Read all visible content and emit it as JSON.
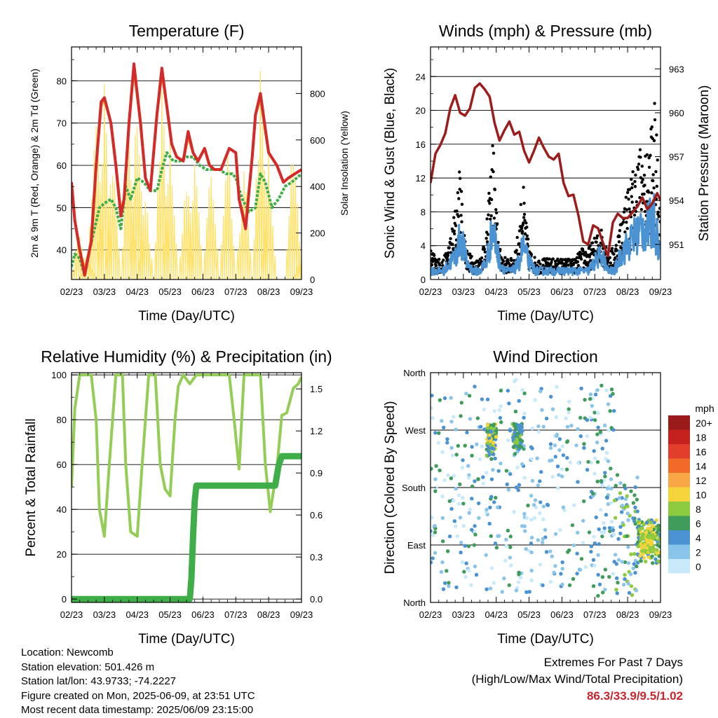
{
  "chart_data": [
    {
      "type": "line",
      "title": "Temperature (F)",
      "xlabel": "Time (Day/UTC)",
      "ylabel": "2m & 9m T (Red, Orange) & 2m Td (Green)",
      "y2label": "Solar Insolation (Yellow)",
      "xticks": [
        "02/23",
        "03/23",
        "04/23",
        "05/23",
        "06/23",
        "07/23",
        "08/23",
        "09/23"
      ],
      "xlim": [
        0,
        7
      ],
      "ylim": [
        33,
        88
      ],
      "yticks": [
        40,
        50,
        60,
        70,
        80
      ],
      "y2lim": [
        0,
        1000
      ],
      "y2ticks": [
        0,
        200,
        400,
        600,
        800
      ],
      "grid": true,
      "series": [
        {
          "color": "#d42a2a",
          "axis": "left",
          "x": [
            0,
            0.1,
            0.25,
            0.4,
            0.6,
            0.75,
            0.9,
            1.0,
            1.2,
            1.35,
            1.5,
            1.6,
            1.75,
            1.9,
            2.1,
            2.25,
            2.4,
            2.6,
            2.75,
            2.9,
            3.05,
            3.2,
            3.4,
            3.55,
            3.7,
            3.85,
            4.05,
            4.2,
            4.35,
            4.55,
            4.7,
            4.8,
            5.0,
            5.1,
            5.3,
            5.5,
            5.6,
            5.75,
            6.0,
            6.25,
            6.45,
            6.6,
            6.8,
            7.0
          ],
          "y": [
            56,
            47,
            40,
            34,
            42,
            60,
            75,
            76,
            70,
            60,
            48,
            52,
            70,
            84,
            70,
            57,
            54,
            72,
            83,
            74,
            65,
            62,
            61,
            68,
            63,
            61,
            64,
            60,
            59,
            59,
            62,
            64,
            63,
            52,
            45,
            62,
            72,
            77,
            63,
            60,
            56,
            57,
            58,
            59
          ]
        },
        {
          "color": "#f28c28",
          "axis": "left",
          "x": [
            0,
            0.1,
            0.25,
            0.4,
            0.6,
            0.75,
            0.9,
            1.0,
            1.2,
            1.35,
            1.5,
            1.6,
            1.75,
            1.9,
            2.1,
            2.25,
            2.4,
            2.6,
            2.75,
            2.9,
            3.05,
            3.2,
            3.4,
            3.55,
            3.7,
            3.85,
            4.05,
            4.2,
            4.35,
            4.55,
            4.7,
            4.8,
            5.0,
            5.1,
            5.3,
            5.5,
            5.6,
            5.75,
            6.0,
            6.25,
            6.45,
            6.6,
            6.8,
            7.0
          ],
          "y": [
            56,
            47,
            40,
            35,
            42,
            60,
            74,
            76,
            70,
            60,
            49,
            52,
            70,
            83,
            70,
            57,
            54,
            72,
            82,
            74,
            65,
            62,
            61,
            67,
            63,
            61,
            64,
            60,
            59,
            59,
            62,
            64,
            63,
            52,
            46,
            62,
            72,
            76,
            63,
            60,
            56,
            57,
            58,
            59
          ]
        },
        {
          "color": "#3fae49",
          "axis": "left",
          "x": [
            0,
            0.1,
            0.25,
            0.4,
            0.55,
            0.7,
            0.85,
            1.0,
            1.2,
            1.35,
            1.5,
            1.65,
            1.8,
            2.0,
            2.2,
            2.4,
            2.6,
            2.75,
            2.9,
            3.1,
            3.3,
            3.5,
            3.7,
            3.9,
            4.1,
            4.3,
            4.5,
            4.7,
            4.9,
            5.0,
            5.2,
            5.4,
            5.6,
            5.75,
            5.9,
            6.1,
            6.3,
            6.5,
            6.7,
            6.85,
            7.0
          ],
          "y": [
            36,
            39,
            38,
            34,
            40,
            45,
            50,
            51,
            52,
            50,
            45,
            55,
            52,
            57,
            56,
            54,
            54,
            59,
            63,
            61,
            61,
            62,
            62,
            60,
            59,
            59,
            59,
            58,
            58,
            57,
            52,
            49,
            50,
            58,
            56,
            50,
            52,
            55,
            56,
            57,
            58
          ]
        },
        {
          "color": "#ffe26b",
          "axis": "right",
          "spikes": true,
          "peaks": [
            [
              0.25,
              260
            ],
            [
              0.5,
              120
            ],
            [
              0.75,
              930
            ],
            [
              1.0,
              860
            ],
            [
              1.25,
              560
            ],
            [
              1.75,
              780
            ],
            [
              2.0,
              830
            ],
            [
              2.25,
              420
            ],
            [
              2.75,
              900
            ],
            [
              3.0,
              740
            ],
            [
              3.5,
              520
            ],
            [
              3.75,
              600
            ],
            [
              4.25,
              580
            ],
            [
              4.75,
              700
            ],
            [
              5.25,
              560
            ],
            [
              5.75,
              960
            ],
            [
              6.0,
              560
            ],
            [
              6.75,
              700
            ],
            [
              7.0,
              120
            ]
          ]
        }
      ]
    },
    {
      "type": "line",
      "title": "Winds (mph) & Pressure (mb)",
      "xlabel": "Time (Day/UTC)",
      "ylabel": "Sonic Wind & Gust (Blue, Black)",
      "y2label": "Station Pressure (Maroon)",
      "xticks": [
        "02/23",
        "03/23",
        "04/23",
        "05/23",
        "06/23",
        "07/23",
        "08/23",
        "09/23"
      ],
      "xlim": [
        0,
        7
      ],
      "ylim": [
        0,
        27.5
      ],
      "yticks": [
        0,
        4,
        8,
        12,
        16,
        20,
        24
      ],
      "y2lim": [
        948.6,
        964.5
      ],
      "y2ticks": [
        951,
        954,
        957,
        960,
        963
      ],
      "grid": true,
      "series": [
        {
          "color": "#9c1c1c",
          "axis": "right",
          "x": [
            0,
            0.15,
            0.3,
            0.45,
            0.6,
            0.75,
            0.9,
            1.05,
            1.2,
            1.35,
            1.5,
            1.65,
            1.8,
            1.95,
            2.1,
            2.25,
            2.4,
            2.55,
            2.7,
            2.85,
            3.0,
            3.15,
            3.3,
            3.45,
            3.6,
            3.75,
            3.9,
            4.05,
            4.2,
            4.35,
            4.5,
            4.65,
            4.8,
            4.95,
            5.1,
            5.25,
            5.4,
            5.55,
            5.7,
            5.85,
            6.0,
            6.15,
            6.3,
            6.45,
            6.6,
            6.75,
            6.9,
            7.0
          ],
          "y": [
            955.2,
            957.2,
            957.8,
            958.6,
            960.3,
            961.2,
            960.0,
            959.8,
            960.3,
            961.7,
            962.0,
            961.6,
            961.1,
            959.3,
            958.1,
            958.8,
            959.4,
            958.5,
            958.7,
            957.4,
            956.6,
            957.4,
            958.3,
            957.6,
            957.0,
            956.8,
            957.2,
            955.2,
            954.3,
            954.4,
            953.0,
            951.2,
            951.0,
            952.3,
            952.1,
            951.1,
            950.2,
            952.5,
            953.1,
            952.8,
            952.8,
            953.2,
            953.6,
            954.2,
            953.4,
            953.8,
            954.5,
            954.0
          ]
        },
        {
          "color": "#4a92d2",
          "axis": "left",
          "x": [
            0,
            0.2,
            0.4,
            0.6,
            0.8,
            0.9,
            1.0,
            1.1,
            1.3,
            1.5,
            1.7,
            1.8,
            1.9,
            2.0,
            2.1,
            2.3,
            2.5,
            2.7,
            2.8,
            2.9,
            3.0,
            3.2,
            3.4,
            3.6,
            3.8,
            4.0,
            4.2,
            4.4,
            4.6,
            4.8,
            5.0,
            5.2,
            5.4,
            5.6,
            5.8,
            6.0,
            6.2,
            6.4,
            6.6,
            6.8,
            6.95,
            7.0
          ],
          "y": [
            1,
            1,
            1,
            2,
            3,
            5,
            4,
            2,
            1,
            1,
            2,
            4,
            6,
            4,
            2,
            1,
            1,
            2,
            4,
            3,
            2,
            1,
            1,
            1,
            1,
            1,
            1,
            1,
            1,
            1,
            2,
            3,
            1,
            1,
            3,
            4,
            5,
            6,
            6,
            7,
            4,
            3
          ]
        },
        {
          "color": "#000000",
          "axis": "left",
          "dots": true,
          "x": [
            0,
            0.2,
            0.4,
            0.6,
            0.8,
            0.9,
            1.0,
            1.1,
            1.3,
            1.5,
            1.7,
            1.8,
            1.9,
            2.0,
            2.1,
            2.3,
            2.5,
            2.7,
            2.8,
            2.9,
            3.0,
            3.2,
            3.4,
            3.6,
            3.8,
            4.0,
            4.2,
            4.4,
            4.6,
            4.8,
            5.0,
            5.2,
            5.4,
            5.6,
            5.8,
            6.0,
            6.2,
            6.4,
            6.6,
            6.8,
            6.95,
            7.0
          ],
          "y": [
            3,
            2,
            2,
            4,
            8,
            11,
            6,
            3,
            2,
            2,
            5,
            9,
            14,
            7,
            3,
            2,
            2,
            5,
            10,
            6,
            3,
            2,
            2,
            2,
            2,
            2,
            2,
            2,
            3,
            3,
            4,
            5,
            3,
            3,
            6,
            9,
            11,
            13,
            12,
            18,
            10,
            7
          ]
        }
      ]
    },
    {
      "type": "line",
      "title": "Relative Humidity (%) & Precipitation (in)",
      "xlabel": "Time (Day/UTC)",
      "ylabel": "Percent & Total Rainfall",
      "xticks": [
        "02/23",
        "03/23",
        "04/23",
        "05/23",
        "06/23",
        "07/23",
        "08/23",
        "09/23"
      ],
      "xlim": [
        0,
        7
      ],
      "ylim": [
        -1.5,
        101
      ],
      "yticks": [
        0,
        20,
        40,
        60,
        80,
        100
      ],
      "y2lim": [
        -0.024,
        1.616
      ],
      "y2ticks": [
        0.0,
        0.3,
        0.6,
        0.9,
        1.2,
        1.5
      ],
      "grid": true,
      "series": [
        {
          "color": "#93cd55",
          "axis": "left",
          "x": [
            0,
            0.1,
            0.25,
            0.4,
            0.6,
            0.75,
            0.85,
            1.0,
            1.15,
            1.35,
            1.55,
            1.65,
            1.8,
            2.0,
            2.15,
            2.35,
            2.55,
            2.7,
            2.85,
            3.0,
            3.15,
            3.25,
            3.4,
            3.6,
            3.8,
            3.9,
            4.1,
            4.3,
            4.5,
            4.65,
            4.8,
            4.95,
            5.1,
            5.25,
            5.5,
            5.75,
            5.9,
            6.05,
            6.25,
            6.4,
            6.55,
            6.75,
            6.9,
            7.0
          ],
          "y": [
            50,
            85,
            100,
            100,
            100,
            80,
            40,
            28,
            60,
            100,
            100,
            60,
            30,
            28,
            60,
            100,
            100,
            60,
            49,
            46,
            80,
            95,
            100,
            96,
            100,
            100,
            100,
            100,
            100,
            100,
            100,
            80,
            58,
            100,
            100,
            100,
            60,
            39,
            58,
            82,
            83,
            94,
            96,
            99
          ]
        },
        {
          "color": "#3fae49",
          "axis": "right",
          "thick": true,
          "x": [
            0,
            3.6,
            3.65,
            3.7,
            3.75,
            3.8,
            4.0,
            4.5,
            5.0,
            5.5,
            6.0,
            6.2,
            6.3,
            6.4,
            7.0
          ],
          "y": [
            0.0,
            0.0,
            0.15,
            0.45,
            0.7,
            0.81,
            0.81,
            0.81,
            0.81,
            0.81,
            0.81,
            0.81,
            0.95,
            1.02,
            1.02
          ]
        }
      ]
    },
    {
      "type": "scatter",
      "title": "Wind Direction",
      "xlabel": "Time (Day/UTC)",
      "ylabel": "Direction (Colored By Speed)",
      "xticks": [
        "02/23",
        "03/23",
        "04/23",
        "05/23",
        "06/23",
        "07/23",
        "08/23",
        "09/23"
      ],
      "xlim": [
        0,
        7
      ],
      "ylim": [
        0,
        360
      ],
      "yticklabels": [
        "North",
        "East",
        "South",
        "West",
        "North"
      ],
      "grid": true,
      "legend": {
        "title": "mph",
        "labels": [
          "0",
          "2",
          "4",
          "6",
          "8",
          "10",
          "12",
          "14",
          "16",
          "18",
          "20+"
        ],
        "colors": [
          "#c7e9fa",
          "#89c4ea",
          "#4a92d2",
          "#3f9c5a",
          "#8ccb3f",
          "#f5d33a",
          "#f8a744",
          "#f06a28",
          "#e33e2b",
          "#c5211f",
          "#9b1a1a"
        ],
        "position": "right"
      }
    }
  ],
  "info": {
    "location": "Location: Newcomb",
    "elevation": "Station elevation: 501.426 m",
    "latlon": "Station lat/lon: 43.9733; -74.2227",
    "created": "Figure created on Mon, 2025-06-09, at 23:51 UTC",
    "recent": "Most recent data timestamp: 2025/06/09 23:15:00"
  },
  "extremes": {
    "title": "Extremes For Past 7 Days",
    "subtitle": "(High/Low/Max Wind/Total Precipitation)",
    "values": "86.3/33.9/9.5/1.02"
  }
}
